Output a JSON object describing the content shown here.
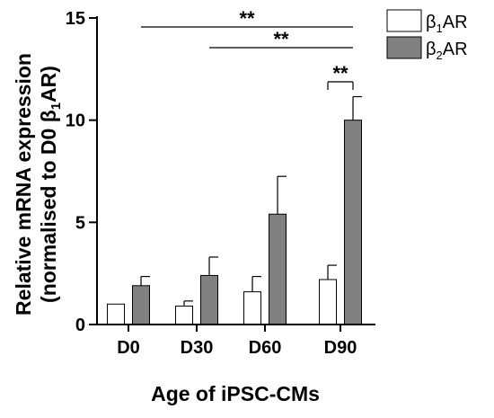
{
  "chart_data": {
    "type": "bar",
    "categories": [
      "D0",
      "D30",
      "D60",
      "D90"
    ],
    "series": [
      {
        "name": "β1AR",
        "legend_main": "β",
        "legend_sub": "1",
        "legend_rest": "AR",
        "fill": "#ffffff",
        "values": [
          1.0,
          0.9,
          1.6,
          2.2
        ],
        "errors": [
          0.0,
          0.25,
          0.75,
          0.7
        ]
      },
      {
        "name": "β2AR",
        "legend_main": "β",
        "legend_sub": "2",
        "legend_rest": "AR",
        "fill": "#808080",
        "values": [
          1.9,
          2.4,
          5.4,
          10.0
        ],
        "errors": [
          0.45,
          0.9,
          1.85,
          1.15
        ]
      }
    ],
    "ylim": [
      0,
      15
    ],
    "yticks": [
      "0",
      "5",
      "10",
      "15"
    ],
    "xlabel": "Age of iPSC-CMs",
    "ylabel_line1": "Relative mRNA expression",
    "ylabel_line2_main": "(normalised to D0 β",
    "ylabel_line2_sub": "1",
    "ylabel_line2_end": "AR)",
    "legend_position": "top-right",
    "grid": false,
    "significance": [
      {
        "label": "**",
        "from_category": "D0",
        "from_series": 1,
        "to_category": "D90",
        "to_series": 1,
        "bracket": false
      },
      {
        "label": "**",
        "from_category": "D30",
        "from_series": 1,
        "to_category": "D90",
        "to_series": 1,
        "bracket": false
      },
      {
        "label": "**",
        "from_category": "D90",
        "from_series": 0,
        "to_category": "D90",
        "to_series": 1,
        "bracket": true
      }
    ]
  }
}
